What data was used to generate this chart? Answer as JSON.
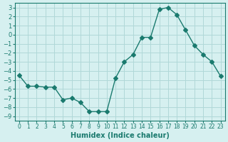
{
  "x": [
    0,
    1,
    2,
    3,
    4,
    5,
    6,
    7,
    8,
    9,
    10,
    11,
    12,
    13,
    14,
    15,
    16,
    17,
    18,
    19,
    20,
    21,
    22,
    23
  ],
  "y": [
    -4.5,
    -5.7,
    -5.7,
    -5.8,
    -5.8,
    -7.2,
    -7.0,
    -7.5,
    -8.5,
    -8.5,
    -8.5,
    -4.8,
    -3.0,
    -2.2,
    -0.3,
    -0.3,
    2.8,
    3.0,
    2.2,
    0.5,
    -1.2,
    -2.2,
    -3.0,
    -4.6
  ],
  "line_color": "#1a7a6e",
  "marker": "D",
  "marker_size": 3,
  "bg_color": "#d6f0f0",
  "grid_color": "#b0d8d8",
  "xlabel": "Humidex (Indice chaleur)",
  "ylim": [
    -9.5,
    3.5
  ],
  "xlim": [
    -0.5,
    23.5
  ],
  "yticks": [
    3,
    2,
    1,
    0,
    -1,
    -2,
    -3,
    -4,
    -5,
    -6,
    -7,
    -8,
    -9
  ],
  "xticks": [
    0,
    1,
    2,
    3,
    4,
    5,
    6,
    7,
    8,
    9,
    10,
    11,
    12,
    13,
    14,
    15,
    16,
    17,
    18,
    19,
    20,
    21,
    22,
    23
  ],
  "tick_color": "#1a7a6e",
  "label_color": "#1a7a6e"
}
